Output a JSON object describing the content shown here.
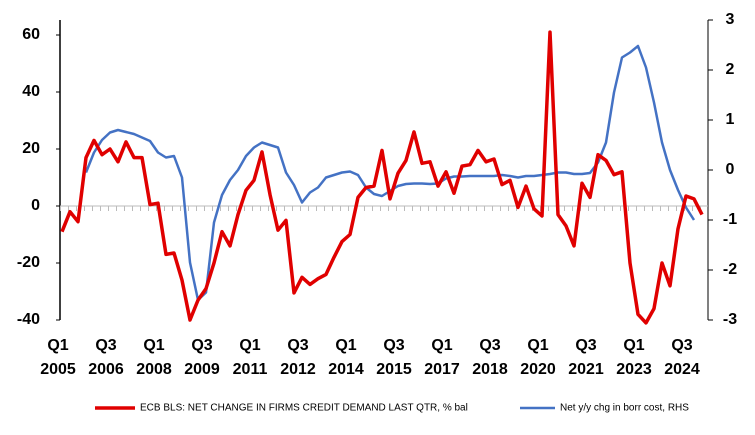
{
  "chart_data": {
    "type": "line",
    "categories": [
      "Q1 2005",
      null,
      null,
      null,
      null,
      null,
      "Q3 2006",
      null,
      null,
      null,
      null,
      null,
      "Q1 2008",
      null,
      null,
      null,
      null,
      null,
      "Q3 2009",
      null,
      null,
      null,
      null,
      null,
      "Q1 2011",
      null,
      null,
      null,
      null,
      null,
      "Q3 2012",
      null,
      null,
      null,
      null,
      null,
      "Q1 2014",
      null,
      null,
      null,
      null,
      null,
      "Q3 2015",
      null,
      null,
      null,
      null,
      null,
      "Q1 2017",
      null,
      null,
      null,
      null,
      null,
      "Q3 2018",
      null,
      null,
      null,
      null,
      null,
      "Q1 2020",
      null,
      null,
      null,
      null,
      null,
      "Q3 2021",
      null,
      null,
      null,
      null,
      null,
      "Q1 2023",
      null,
      null,
      null,
      null,
      null,
      "Q3 2024",
      null,
      null
    ],
    "series": [
      {
        "name": "ECB BLS: NET CHANGE IN FIRMS CREDIT DEMAND LAST QTR, % bal",
        "color": "#e00000",
        "values": [
          -9,
          -2,
          -5.5,
          17,
          23,
          18,
          20,
          15.5,
          22.5,
          17,
          17,
          0.5,
          1,
          -17,
          -16.5,
          -26,
          -40,
          -33,
          -29,
          -20,
          -9,
          -14,
          -3,
          5.5,
          9,
          19,
          4,
          -8.5,
          -5,
          -30.5,
          -25,
          -27.5,
          -25.5,
          -24,
          -18,
          -12.5,
          -10,
          3,
          6.5,
          7,
          19.5,
          2.5,
          11.5,
          16,
          26,
          15,
          15.5,
          7,
          12,
          4.5,
          14,
          14.5,
          19.5,
          15.5,
          16.5,
          7.5,
          9,
          -0.5,
          7,
          -1,
          -3.5,
          61,
          -3,
          -7,
          -14,
          8,
          3,
          18,
          16,
          11,
          12,
          -20,
          -38,
          -41,
          -36,
          -20,
          -28,
          -8,
          3.5,
          2.5,
          -3
        ]
      },
      {
        "name": "Net y/y chg in borr cost, RHS",
        "color": "#4472c4",
        "axis": "y2",
        "values": [
          null,
          null,
          null,
          -0.05,
          0.35,
          0.6,
          0.75,
          0.8,
          0.76,
          0.72,
          0.65,
          0.58,
          0.35,
          0.25,
          0.28,
          -0.15,
          -1.85,
          -2.6,
          -2.45,
          -1.05,
          -0.5,
          -0.2,
          0,
          0.28,
          0.45,
          0.55,
          0.5,
          0.45,
          -0.05,
          -0.3,
          -0.65,
          -0.45,
          -0.35,
          -0.15,
          -0.1,
          -0.05,
          -0.03,
          -0.1,
          -0.35,
          -0.48,
          -0.52,
          -0.42,
          -0.32,
          -0.28,
          -0.27,
          -0.27,
          -0.28,
          -0.27,
          -0.17,
          -0.13,
          -0.13,
          -0.12,
          -0.12,
          -0.12,
          -0.12,
          -0.1,
          -0.12,
          -0.15,
          -0.12,
          -0.12,
          -0.1,
          -0.08,
          -0.05,
          -0.05,
          -0.08,
          -0.08,
          -0.06,
          0.15,
          0.55,
          1.55,
          2.25,
          2.35,
          2.48,
          2.05,
          1.35,
          0.55,
          0,
          -0.4,
          -0.75,
          -1.0,
          null
        ]
      }
    ],
    "ylim": [
      -40,
      60
    ],
    "yticks": [
      -40,
      -20,
      0,
      20,
      40,
      60
    ],
    "y2lim": [
      -3,
      3
    ],
    "y2ticks": [
      -3,
      -2,
      -1,
      0,
      1,
      2,
      3
    ],
    "grid": false,
    "legend": "bottom"
  }
}
